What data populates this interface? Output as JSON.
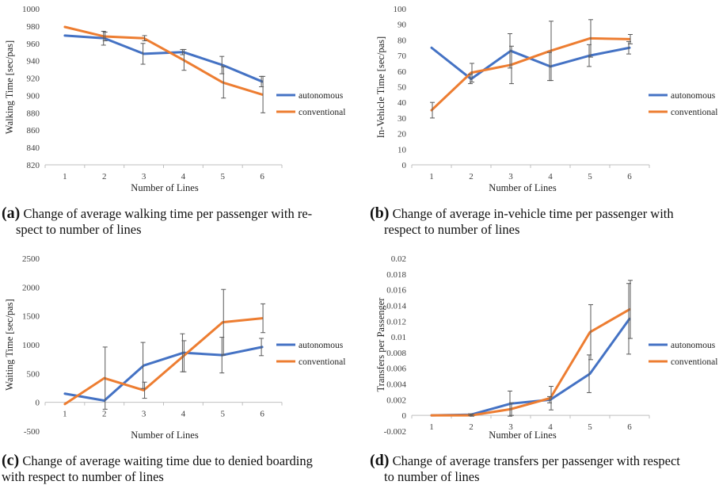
{
  "colors": {
    "autonomous": "#4472C4",
    "conventional": "#ED7D31",
    "axis": "#BFBFBF",
    "errorbar": "#595959"
  },
  "captions": [
    {
      "tag": "(a)",
      "line1": "Change of average walking time per passenger with re-",
      "line2": "spect to number of lines"
    },
    {
      "tag": "(b)",
      "line1": "Change of average in-vehicle time per passenger with",
      "line2": "respect to number of lines"
    },
    {
      "tag": "(c)",
      "line1": "Change of average waiting time due to denied boarding",
      "line2": "with respect to number of lines"
    },
    {
      "tag": "(d)",
      "line1": "Change of average transfers per passenger with respect",
      "line2": "to number of lines"
    }
  ],
  "chart_data": [
    {
      "type": "line",
      "title": "",
      "xlabel": "Number of Lines",
      "ylabel": "Walking Time [sec/pas]",
      "categories": [
        "1",
        "2",
        "3",
        "4",
        "5",
        "6"
      ],
      "ylim": [
        820,
        1000
      ],
      "yticks": [
        "820",
        "840",
        "860",
        "880",
        "900",
        "920",
        "940",
        "960",
        "980",
        "1000"
      ],
      "legend": "right",
      "series": [
        {
          "name": "autonomous",
          "values": [
            969,
            966,
            948,
            950,
            935,
            916
          ],
          "err": [
            0,
            8,
            12,
            3,
            10,
            6
          ]
        },
        {
          "name": "conventional",
          "values": [
            979,
            968,
            966,
            941,
            915,
            901
          ],
          "err": [
            0,
            5,
            3,
            12,
            18,
            21
          ]
        }
      ]
    },
    {
      "type": "line",
      "title": "",
      "xlabel": "Number of Lines",
      "ylabel": "In-Vehicle Time [sec/pas]",
      "categories": [
        "1",
        "2",
        "3",
        "4",
        "5",
        "6"
      ],
      "ylim": [
        0,
        100
      ],
      "yticks": [
        "0",
        "10",
        "20",
        "30",
        "40",
        "50",
        "60",
        "70",
        "80",
        "90",
        "100"
      ],
      "legend": "right",
      "series": [
        {
          "name": "autonomous",
          "values": [
            75,
            55,
            73,
            63,
            70,
            75
          ],
          "err": [
            0,
            3,
            11,
            9,
            7,
            4
          ]
        },
        {
          "name": "conventional",
          "values": [
            35,
            59,
            64,
            73,
            81,
            80.5
          ],
          "err": [
            5,
            6,
            12,
            19,
            12,
            3
          ]
        }
      ]
    },
    {
      "type": "line",
      "title": "",
      "xlabel": "Number of Lines",
      "ylabel": "Waiting Time [sec/pas]",
      "categories": [
        "1",
        "2",
        "3",
        "4",
        "5",
        "6"
      ],
      "ylim": [
        -500,
        2500
      ],
      "yticks": [
        "-500",
        "0",
        "500",
        "1000",
        "1500",
        "2000",
        "2500"
      ],
      "legend": "right",
      "series": [
        {
          "name": "autonomous",
          "values": [
            150,
            30,
            640,
            860,
            820,
            960
          ],
          "err": [
            0,
            0,
            400,
            330,
            310,
            150
          ]
        },
        {
          "name": "conventional",
          "values": [
            -30,
            420,
            210,
            800,
            1390,
            1460
          ],
          "err": [
            0,
            540,
            140,
            270,
            570,
            250
          ]
        }
      ]
    },
    {
      "type": "line",
      "title": "",
      "xlabel": "Number of Lines",
      "ylabel": "Transfers per Passenger",
      "categories": [
        "1",
        "2",
        "3",
        "4",
        "5",
        "6"
      ],
      "ylim": [
        -0.002,
        0.02
      ],
      "yticks": [
        "-0.002",
        "0",
        "0.002",
        "0.004",
        "0.006",
        "0.008",
        "0.01",
        "0.012",
        "0.014",
        "0.016",
        "0.018",
        "0.02"
      ],
      "legend": "right",
      "series": [
        {
          "name": "autonomous",
          "values": [
            0,
            0.0001,
            0.0015,
            0.002,
            0.0053,
            0.0123
          ],
          "err": [
            0,
            0.0001,
            0.0016,
            0.0004,
            0.0024,
            0.0045
          ]
        },
        {
          "name": "conventional",
          "values": [
            0,
            0,
            0.0008,
            0.0022,
            0.0106,
            0.0135
          ],
          "err": [
            0,
            0.0001,
            0.0008,
            0.0015,
            0.0035,
            0.0037
          ]
        }
      ]
    }
  ]
}
